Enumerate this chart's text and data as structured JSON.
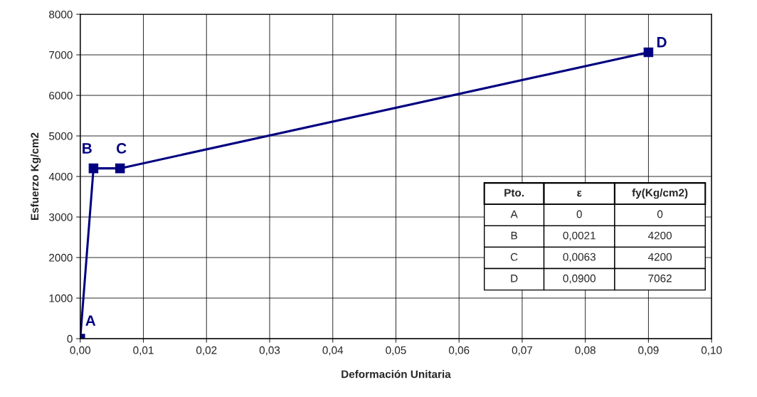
{
  "chart_data": {
    "type": "line",
    "xlabel": "Deformación Unitaria",
    "ylabel": "Esfuerzo Kg/cm2",
    "series": [
      {
        "color": "#000080",
        "x": [
          0,
          0.0021,
          0.0063,
          0.09
        ],
        "values": [
          0,
          4200,
          4200,
          7062
        ]
      }
    ],
    "xlim": [
      0,
      0.1
    ],
    "xticks": [
      {
        "value": 0,
        "label": "0,00"
      },
      {
        "value": 0.01,
        "label": "0,01"
      },
      {
        "value": 0.02,
        "label": "0,02"
      },
      {
        "value": 0.03,
        "label": "0,03"
      },
      {
        "value": 0.04,
        "label": "0,04"
      },
      {
        "value": 0.05,
        "label": "0,05"
      },
      {
        "value": 0.06,
        "label": "0,06"
      },
      {
        "value": 0.07,
        "label": "0,07"
      },
      {
        "value": 0.08,
        "label": "0,08"
      },
      {
        "value": 0.09,
        "label": "0,09"
      },
      {
        "value": 0.1,
        "label": "0,10"
      }
    ],
    "ylim": [
      0,
      8000
    ],
    "yticks": [
      0,
      1000,
      2000,
      3000,
      4000,
      5000,
      6000,
      7000,
      8000
    ],
    "grid": true,
    "marker": "square",
    "line_style": "solid",
    "legend": false,
    "annotations": [
      {
        "text": "A",
        "x": 0,
        "y": 0
      },
      {
        "text": "B",
        "x": 0.0021,
        "y": 4200
      },
      {
        "text": "C",
        "x": 0.0063,
        "y": 4200
      },
      {
        "text": "D",
        "x": 0.09,
        "y": 7062
      },
      "Pto.",
      "ε",
      "fy(Kg/cm2)",
      "A",
      "0",
      "0",
      "B",
      "0,0021",
      "4200",
      "C",
      "0,0063",
      "4200",
      "D",
      "0,0900",
      "7062"
    ]
  }
}
